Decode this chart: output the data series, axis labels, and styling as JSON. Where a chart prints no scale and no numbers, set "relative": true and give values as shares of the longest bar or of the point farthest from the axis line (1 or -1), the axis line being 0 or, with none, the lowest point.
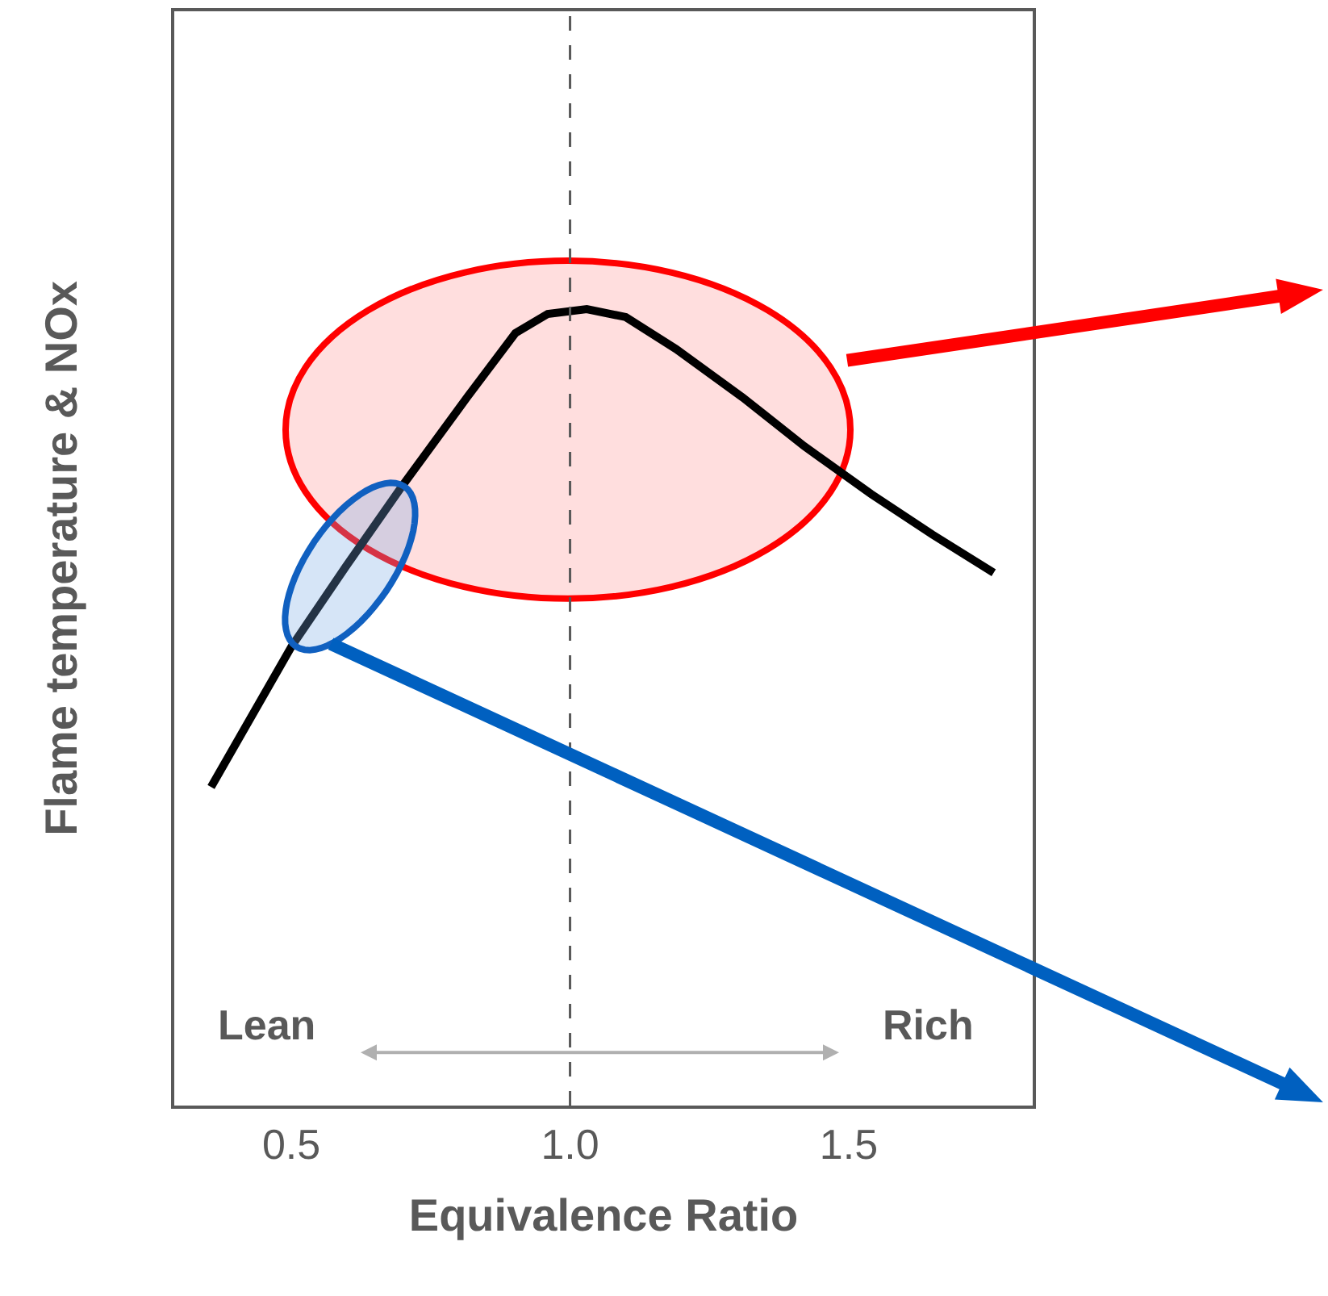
{
  "chart_data": {
    "type": "line",
    "xlabel": "Equivalence Ratio",
    "ylabel": "Flame temperature & NOx",
    "x": [
      0.356,
      0.5,
      0.598,
      0.699,
      0.815,
      0.902,
      0.96,
      1.03,
      1.1,
      1.19,
      1.31,
      1.42,
      1.54,
      1.65,
      1.76
    ],
    "series": [
      {
        "color": "#000000",
        "values": [
          0.4,
          0.576,
          0.677,
          0.778,
          0.889,
          0.97,
          0.994,
          1.0,
          0.99,
          0.95,
          0.889,
          0.828,
          0.768,
          0.717,
          0.669
        ]
      }
    ],
    "relative": true,
    "xlim": [
      0.29,
      1.83
    ],
    "xticks": [
      0.5,
      {
        "value": 1.0,
        "label": "1.0"
      },
      1.5
    ],
    "tick_labels": "x",
    "marker": "none",
    "line_style": "solid",
    "ref_lines": [
      {
        "axis": "x",
        "value": 1.0,
        "label": null,
        "color": "#595959",
        "line_style": "dashed"
      }
    ],
    "annotations": [
      "Lean",
      "Rich"
    ]
  }
}
